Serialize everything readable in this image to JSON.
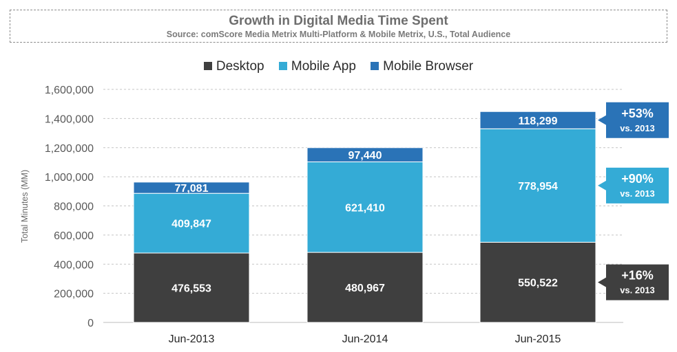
{
  "chart_data": {
    "type": "bar",
    "stacked": true,
    "title": "Growth in Digital Media Time Spent",
    "subtitle": "Source: comScore Media Metrix Multi-Platform & Mobile Metrix, U.S., Total Audience",
    "ylabel": "Total Minutes (MM)",
    "xlabel": "",
    "ylim": [
      0,
      1600000
    ],
    "yticks": [
      "0",
      "200,000",
      "400,000",
      "600,000",
      "800,000",
      "1,000,000",
      "1,200,000",
      "1,400,000",
      "1,600,000"
    ],
    "grid": true,
    "legend_position": "top-center",
    "categories": [
      "Jun-2013",
      "Jun-2014",
      "Jun-2015"
    ],
    "series": [
      {
        "name": "Desktop",
        "color": "#3f3f3f",
        "values": [
          476553,
          480967,
          550522
        ],
        "labels": [
          "476,553",
          "480,967",
          "550,522"
        ]
      },
      {
        "name": "Mobile App",
        "color": "#34abd6",
        "values": [
          409847,
          621410,
          778954
        ],
        "labels": [
          "409,847",
          "621,410",
          "778,954"
        ]
      },
      {
        "name": "Mobile Browser",
        "color": "#2a73b7",
        "values": [
          77081,
          97440,
          118299
        ],
        "labels": [
          "77,081",
          "97,440",
          "118,299"
        ]
      }
    ],
    "annotations": [
      {
        "series": "Mobile Browser",
        "pct": "+53%",
        "note": "vs. 2013",
        "color": "#2a73b7"
      },
      {
        "series": "Mobile App",
        "pct": "+90%",
        "note": "vs. 2013",
        "color": "#34abd6"
      },
      {
        "series": "Desktop",
        "pct": "+16%",
        "note": "vs. 2013",
        "color": "#3f3f3f"
      }
    ]
  }
}
